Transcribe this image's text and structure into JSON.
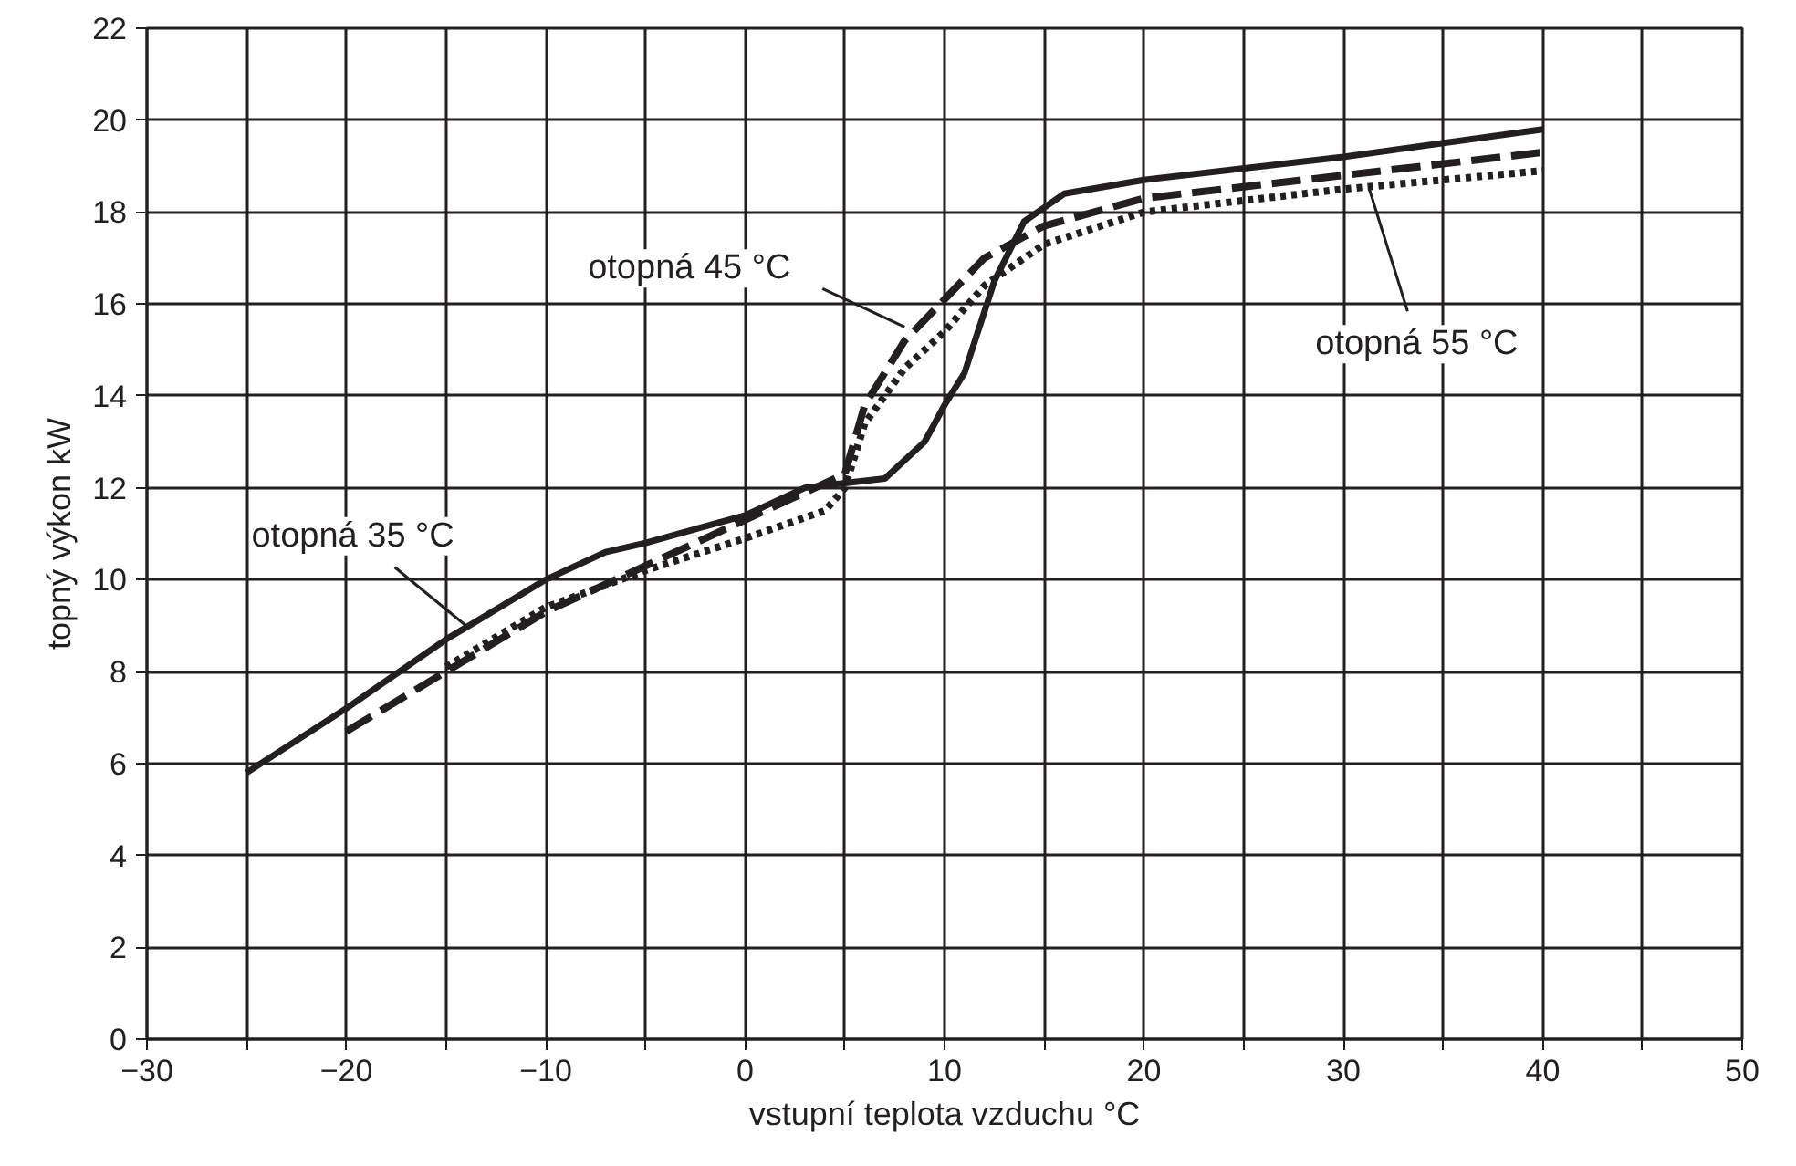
{
  "chart_data": {
    "type": "line",
    "xlabel": "vstupní teplota vzduchu °C",
    "ylabel": "topný výkon kW",
    "xlim": [
      -30,
      50
    ],
    "ylim": [
      0,
      22
    ],
    "xticks": [
      -30,
      {
        "value": -25,
        "label": null
      },
      -20,
      {
        "value": -15,
        "label": null
      },
      -10,
      {
        "value": -5,
        "label": null
      },
      0,
      {
        "value": 5,
        "label": null
      },
      10,
      {
        "value": 15,
        "label": null
      },
      20,
      {
        "value": 25,
        "label": null
      },
      30,
      {
        "value": 35,
        "label": null
      },
      40,
      {
        "value": 45,
        "label": null
      },
      50
    ],
    "yticks": [
      0,
      2,
      4,
      6,
      8,
      10,
      12,
      14,
      16,
      18,
      20,
      22
    ],
    "grid": true,
    "series": [
      {
        "color": "#231f20",
        "line_style": "solid",
        "x": [
          -25,
          -20,
          -15,
          -10,
          -7,
          -5,
          0,
          3,
          5,
          7,
          9,
          10,
          11,
          12.5,
          14,
          16,
          20,
          30,
          40
        ],
        "values": [
          5.8,
          7.2,
          8.7,
          10.0,
          10.6,
          10.8,
          11.4,
          12.0,
          12.1,
          12.2,
          13.0,
          13.8,
          14.5,
          16.5,
          17.8,
          18.4,
          18.7,
          19.2,
          19.8
        ]
      },
      {
        "color": "#231f20",
        "line_style": "dashed",
        "x": [
          -20,
          -15,
          -10,
          -5,
          0,
          3,
          5,
          6,
          8,
          10,
          12,
          15,
          20,
          30,
          40
        ],
        "values": [
          6.7,
          8.0,
          9.3,
          10.3,
          11.3,
          11.9,
          12.3,
          13.8,
          15.2,
          16.1,
          17.0,
          17.7,
          18.3,
          18.8,
          19.3
        ]
      },
      {
        "color": "#231f20",
        "line_style": "dotted",
        "x": [
          -15,
          -10,
          -5,
          0,
          4,
          5,
          6,
          8,
          10,
          12,
          15,
          20,
          30,
          40
        ],
        "values": [
          8.1,
          9.4,
          10.2,
          10.9,
          11.5,
          12.0,
          13.4,
          14.6,
          15.4,
          16.4,
          17.3,
          18.0,
          18.5,
          18.9
        ]
      }
    ],
    "annotations": [
      {
        "text": "otopná 35 °C",
        "x": -14,
        "y": 9.0
      },
      {
        "text": "otopná 45 °C",
        "x": 8,
        "y": 15.5
      },
      {
        "text": "otopná 55 °C",
        "x": 31.3,
        "y": 18.5
      }
    ]
  }
}
